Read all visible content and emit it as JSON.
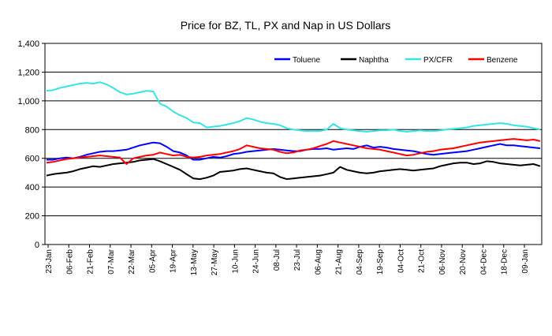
{
  "chart_data": {
    "type": "line",
    "title": "Price for BZ, TL, PX and Nap in US Dollars",
    "xlabel": "",
    "ylabel": "",
    "ylim": [
      0,
      1400
    ],
    "y_ticks": [
      0,
      200,
      400,
      600,
      800,
      1000,
      1200,
      1400
    ],
    "y_tick_labels": [
      "0",
      "200",
      "400",
      "600",
      "800",
      "1,000",
      "1,200",
      "1,400"
    ],
    "grid": "horizontal",
    "legend_position": "top-right",
    "x_tick_labels": [
      "23-Jan",
      "06-Feb",
      "21-Feb",
      "07-Mar",
      "22-Mar",
      "05-Apr",
      "19-Apr",
      "13-May",
      "27-May",
      "10-Jun",
      "24-Jun",
      "08-Jul",
      "23-Jul",
      "06-Aug",
      "21-Aug",
      "04-Sep",
      "19-Sep",
      "04-Oct",
      "21-Oct",
      "06-Nov",
      "20-Nov",
      "04-Dec",
      "18-Dec",
      "09-Jan"
    ],
    "series": [
      {
        "name": "Toluene",
        "color": "#0000ff",
        "values": [
          590,
          590,
          600,
          605,
          600,
          610,
          625,
          635,
          645,
          650,
          650,
          655,
          660,
          675,
          690,
          700,
          710,
          705,
          680,
          650,
          640,
          620,
          590,
          590,
          600,
          610,
          605,
          615,
          630,
          635,
          645,
          650,
          655,
          660,
          665,
          660,
          655,
          650,
          650,
          660,
          665,
          665,
          670,
          660,
          665,
          670,
          665,
          680,
          690,
          675,
          680,
          675,
          665,
          660,
          655,
          650,
          640,
          630,
          625,
          630,
          635,
          640,
          645,
          650,
          660,
          670,
          680,
          690,
          700,
          690,
          690,
          685,
          680,
          675,
          670
        ]
      },
      {
        "name": "Naphtha",
        "color": "#000000",
        "values": [
          480,
          490,
          495,
          500,
          510,
          525,
          535,
          545,
          540,
          550,
          560,
          565,
          570,
          575,
          585,
          590,
          595,
          580,
          560,
          540,
          520,
          490,
          460,
          455,
          465,
          480,
          505,
          510,
          515,
          525,
          530,
          520,
          510,
          500,
          495,
          470,
          455,
          460,
          465,
          470,
          475,
          480,
          490,
          500,
          540,
          520,
          510,
          500,
          495,
          500,
          510,
          515,
          520,
          525,
          520,
          515,
          520,
          525,
          530,
          545,
          555,
          565,
          570,
          570,
          560,
          565,
          580,
          575,
          565,
          560,
          555,
          550,
          555,
          560,
          545
        ]
      },
      {
        "name": "PX/CFR",
        "color": "#33e5e5",
        "values": [
          1070,
          1075,
          1090,
          1100,
          1110,
          1120,
          1125,
          1120,
          1130,
          1115,
          1090,
          1060,
          1045,
          1050,
          1060,
          1070,
          1065,
          980,
          960,
          925,
          900,
          880,
          850,
          845,
          815,
          820,
          825,
          835,
          845,
          860,
          880,
          870,
          855,
          845,
          840,
          830,
          810,
          800,
          795,
          790,
          790,
          790,
          800,
          840,
          810,
          800,
          795,
          790,
          785,
          790,
          795,
          795,
          800,
          790,
          785,
          790,
          795,
          790,
          790,
          795,
          800,
          805,
          810,
          815,
          825,
          830,
          835,
          840,
          845,
          840,
          830,
          825,
          820,
          810,
          800
        ]
      },
      {
        "name": "Benzene",
        "color": "#ff0000",
        "values": [
          570,
          575,
          585,
          595,
          600,
          605,
          610,
          615,
          620,
          615,
          610,
          605,
          560,
          600,
          610,
          620,
          625,
          640,
          630,
          620,
          625,
          610,
          605,
          610,
          620,
          625,
          630,
          640,
          650,
          665,
          690,
          680,
          670,
          665,
          660,
          645,
          635,
          640,
          655,
          660,
          670,
          685,
          700,
          720,
          710,
          700,
          690,
          680,
          670,
          665,
          660,
          650,
          640,
          630,
          620,
          625,
          635,
          645,
          650,
          660,
          665,
          670,
          680,
          690,
          700,
          710,
          715,
          720,
          725,
          730,
          735,
          730,
          725,
          730,
          720
        ]
      }
    ]
  }
}
